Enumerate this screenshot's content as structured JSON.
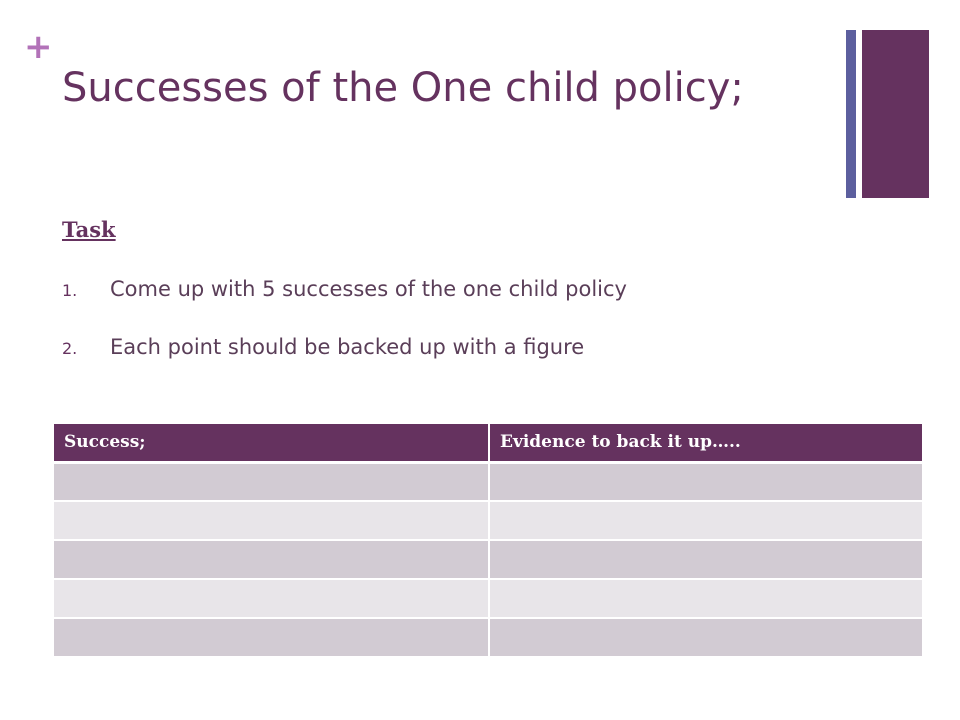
{
  "slide": {
    "plus_symbol": "+",
    "title": "Successes of the One child policy;"
  },
  "task": {
    "heading": "Task",
    "items": [
      {
        "num": "1.",
        "text": "Come up with 5 successes of the one child policy"
      },
      {
        "num": "2.",
        "text": "Each point should be backed up with a figure"
      }
    ]
  },
  "table": {
    "headers": [
      "Success;",
      "Evidence to back it up….."
    ],
    "rows": [
      [
        "",
        ""
      ],
      [
        "",
        ""
      ],
      [
        "",
        ""
      ],
      [
        "",
        ""
      ],
      [
        "",
        ""
      ]
    ]
  },
  "colors": {
    "accent_purple": "#65325f",
    "plus_pink": "#b272b8",
    "thin_bar_blue": "#5c5f9e",
    "row_odd": "#d2cbd3",
    "row_even": "#e8e5e9"
  }
}
